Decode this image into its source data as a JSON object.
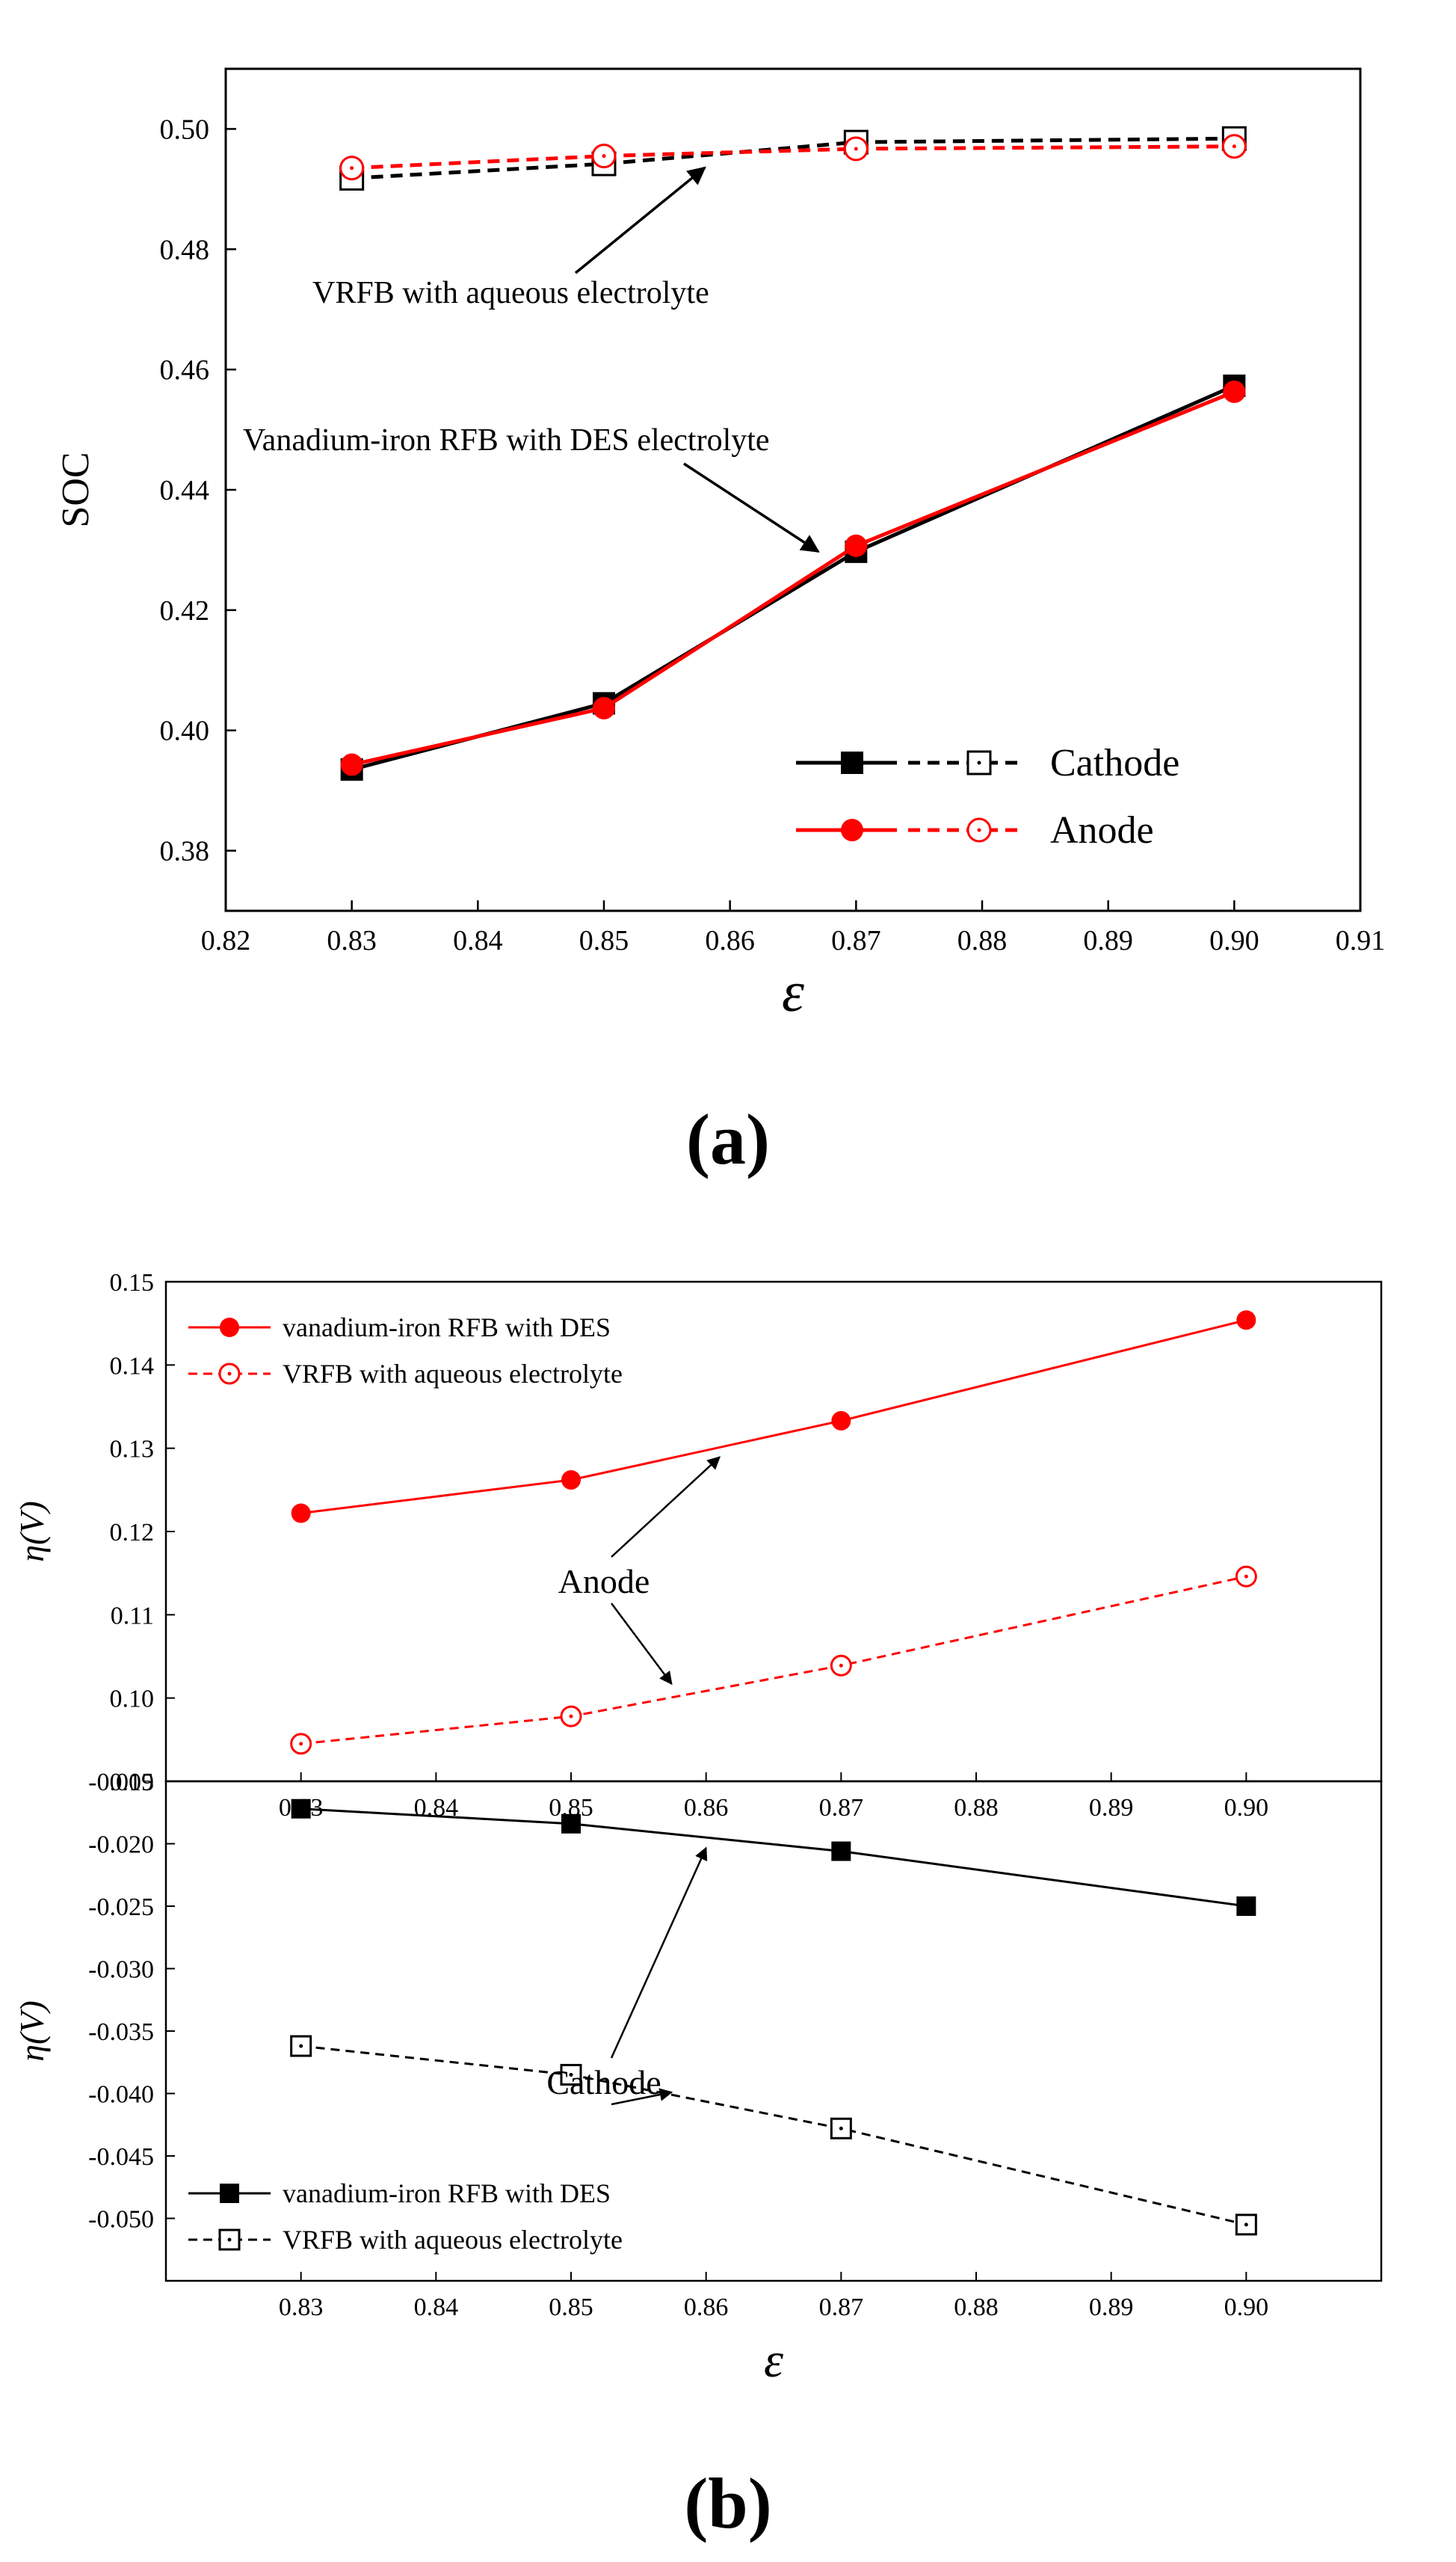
{
  "chart_data": [
    {
      "type": "line",
      "panel_label": "(a)",
      "xlabel": "ε",
      "ylabel": "SOC",
      "xlim": [
        0.82,
        0.91
      ],
      "ylim": [
        0.37,
        0.51
      ],
      "xticks": [
        "0.82",
        "0.83",
        "0.84",
        "0.85",
        "0.86",
        "0.87",
        "0.88",
        "0.89",
        "0.90",
        "0.91"
      ],
      "yticks": [
        "0.38",
        "0.40",
        "0.42",
        "0.44",
        "0.46",
        "0.48",
        "0.50"
      ],
      "x": [
        0.83,
        0.85,
        0.87,
        0.9
      ],
      "series": [
        {
          "name": "Cathode (Vanadium-iron RFB with DES)",
          "color": "#000000",
          "style": "solid",
          "marker": "filled-square",
          "values": [
            0.3935,
            0.4045,
            0.4297,
            0.4573
          ]
        },
        {
          "name": "Anode (Vanadium-iron RFB with DES)",
          "color": "#ff0000",
          "style": "solid",
          "marker": "filled-circle",
          "values": [
            0.3943,
            0.4037,
            0.4307,
            0.4563
          ]
        },
        {
          "name": "Cathode (VRFB with aqueous electrolyte)",
          "color": "#000000",
          "style": "dashed",
          "marker": "open-square",
          "values": [
            0.4918,
            0.4942,
            0.4978,
            0.4984
          ]
        },
        {
          "name": "Anode (VRFB with aqueous electrolyte)",
          "color": "#ff0000",
          "style": "dashed",
          "marker": "open-circle",
          "values": [
            0.4935,
            0.4955,
            0.4967,
            0.4971
          ]
        }
      ],
      "annotations": [
        {
          "text": "VRFB with aqueous electrolyte",
          "target": [
            0.858,
            0.4958
          ]
        },
        {
          "text": "Vanadium-iron RFB with DES electrolyte",
          "target": [
            0.867,
            0.4285
          ]
        }
      ],
      "legend": {
        "position": "bottom-right",
        "entries": [
          "Cathode",
          "Anode"
        ]
      }
    },
    {
      "type": "line",
      "panel_label": "(b)",
      "xlabel": "ε",
      "ylabel": "η(V)",
      "xlim": [
        0.82,
        0.91
      ],
      "xticks": [
        "0.83",
        "0.84",
        "0.85",
        "0.86",
        "0.87",
        "0.88",
        "0.89",
        "0.90"
      ],
      "x": [
        0.83,
        0.85,
        0.87,
        0.9
      ],
      "subplots": [
        {
          "name": "anode",
          "ylim": [
            0.09,
            0.15
          ],
          "yticks": [
            "0.09",
            "0.10",
            "0.11",
            "0.12",
            "0.13",
            "0.14",
            "0.15"
          ],
          "series": [
            {
              "name": "vanadium-iron RFB with DES",
              "color": "#ff0000",
              "style": "solid",
              "marker": "filled-circle",
              "values": [
                0.1222,
                0.1262,
                0.1333,
                0.1454
              ]
            },
            {
              "name": "VRFB with aqueous electrolyte",
              "color": "#ff0000",
              "style": "dashed",
              "marker": "open-circle",
              "values": [
                0.0945,
                0.0978,
                0.1039,
                0.1146
              ]
            }
          ],
          "annotation": {
            "text": "Anode",
            "targets": [
              [
                0.861,
                0.1302
              ],
              [
                0.858,
                0.1008
              ]
            ]
          },
          "legend": {
            "position": "top-left",
            "entries": [
              "vanadium-iron RFB with DES",
              "VRFB with aqueous electrolyte"
            ]
          }
        },
        {
          "name": "cathode",
          "ylim": [
            -0.055,
            -0.015
          ],
          "yticks": [
            "-0.015",
            "-0.020",
            "-0.025",
            "-0.030",
            "-0.035",
            "-0.040",
            "-0.045",
            "-0.050"
          ],
          "series": [
            {
              "name": "vanadium-iron RFB with DES",
              "color": "#000000",
              "style": "solid",
              "marker": "filled-square",
              "values": [
                -0.0172,
                -0.0184,
                -0.0206,
                -0.025
              ]
            },
            {
              "name": "VRFB with aqueous electrolyte",
              "color": "#000000",
              "style": "dashed",
              "marker": "open-square",
              "values": [
                -0.0362,
                -0.0385,
                -0.0428,
                -0.0505
              ]
            }
          ],
          "annotation": {
            "text": "Cathode",
            "targets": [
              [
                0.86,
                -0.0195
              ],
              [
                0.858,
                -0.0405
              ]
            ]
          },
          "legend": {
            "position": "bottom-left",
            "entries": [
              "vanadium-iron RFB with DES",
              "VRFB with aqueous electrolyte"
            ]
          }
        }
      ]
    }
  ]
}
